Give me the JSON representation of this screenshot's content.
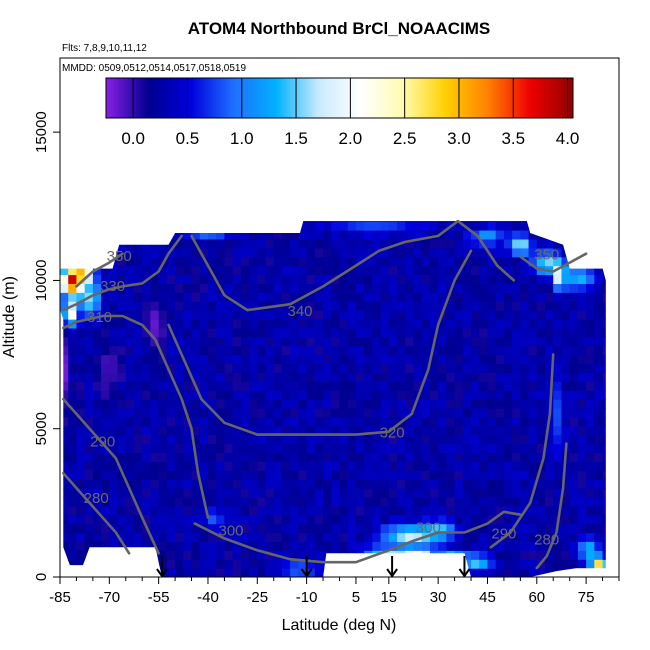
{
  "header": {
    "title": "ATOM4 Northbound BrCl_NOAACIMS",
    "flights_label": "Flts: 7,8,9,10,11,12",
    "dates_label": "MMDD: 0509,0512,0514,0517,0518,0519"
  },
  "chart_data": {
    "type": "heatmap",
    "title": "ATOM4 Northbound BrCl_NOAACIMS",
    "xlabel": "Latitude (deg N)",
    "ylabel": "Altitude (m)",
    "xlim": [
      -85,
      85
    ],
    "ylim": [
      0,
      17500
    ],
    "x_ticks": [
      -85,
      -70,
      -55,
      -40,
      -25,
      -10,
      5,
      15,
      30,
      45,
      60,
      75
    ],
    "x_minor_step": 5,
    "y_ticks": [
      0,
      5000,
      10000,
      15000
    ],
    "colorbar": {
      "range": [
        -0.25,
        4.05
      ],
      "ticks": [
        0.0,
        0.5,
        1.0,
        1.5,
        2.0,
        2.5,
        3.0,
        3.5,
        4.0
      ],
      "tick_labels": [
        "0.0",
        "0.5",
        "1.0",
        "1.5",
        "2.0",
        "2.5",
        "3.0",
        "3.5",
        "4.0"
      ],
      "colors": [
        "#8a1fe6",
        "#00008f",
        "#0000dd",
        "#1f6fff",
        "#00b0ff",
        "#c8eaff",
        "#ffffff",
        "#fffbb0",
        "#ffd000",
        "#ff8000",
        "#ee0000",
        "#900000"
      ],
      "placement": "top"
    },
    "grid": false,
    "background_value": 0.25,
    "data_envelope": [
      [
        -84,
        1000
      ],
      [
        -82,
        400
      ],
      [
        -78,
        400
      ],
      [
        -76,
        1000
      ],
      [
        -56,
        1000
      ],
      [
        -54,
        0
      ],
      [
        -52,
        0
      ],
      [
        -5,
        0
      ],
      [
        -4,
        800
      ],
      [
        38,
        800
      ],
      [
        40,
        0
      ],
      [
        48,
        0
      ],
      [
        58,
        0
      ],
      [
        66,
        200
      ],
      [
        72,
        300
      ],
      [
        81,
        300
      ],
      [
        81,
        10000
      ],
      [
        80,
        10400
      ],
      [
        70,
        10400
      ],
      [
        68,
        11200
      ],
      [
        58,
        11600
      ],
      [
        57,
        12000
      ],
      [
        44,
        12000
      ],
      [
        40,
        12000
      ],
      [
        30,
        12000
      ],
      [
        20,
        12000
      ],
      [
        10,
        12000
      ],
      [
        0,
        12000
      ],
      [
        -11,
        12000
      ],
      [
        -12,
        11600
      ],
      [
        -50,
        11600
      ],
      [
        -52,
        11200
      ],
      [
        -67,
        11200
      ],
      [
        -69,
        10400
      ],
      [
        -80,
        10400
      ],
      [
        -85,
        10400
      ],
      [
        -85,
        9000
      ],
      [
        -84,
        8700
      ],
      [
        -84,
        5000
      ]
    ],
    "hotspots": [
      {
        "x": -81,
        "y": 10000,
        "value": 4.0,
        "rx": 3.5,
        "ry": 500
      },
      {
        "x": -78,
        "y": 10300,
        "value": 3.2,
        "rx": 2.5,
        "ry": 400
      },
      {
        "x": -75,
        "y": 11000,
        "value": 3.0,
        "rx": 1.5,
        "ry": 350
      },
      {
        "x": -82,
        "y": 8900,
        "value": 2.6,
        "rx": 2.0,
        "ry": 400
      },
      {
        "x": -76,
        "y": 9400,
        "value": 1.6,
        "rx": 3.5,
        "ry": 600
      },
      {
        "x": -84,
        "y": 7000,
        "value": -0.2,
        "rx": 2.0,
        "ry": 1300
      },
      {
        "x": -70,
        "y": 7000,
        "value": -0.1,
        "rx": 3.0,
        "ry": 900
      },
      {
        "x": -56,
        "y": 8500,
        "value": -0.15,
        "rx": 3.0,
        "ry": 900
      },
      {
        "x": -65,
        "y": 11700,
        "value": 1.3,
        "rx": 6.0,
        "ry": 300
      },
      {
        "x": -40,
        "y": 11700,
        "value": 1.1,
        "rx": 8.0,
        "ry": 250
      },
      {
        "x": 10,
        "y": 11800,
        "value": 0.8,
        "rx": 15.0,
        "ry": 250
      },
      {
        "x": 45,
        "y": 11500,
        "value": 1.2,
        "rx": 5.0,
        "ry": 300
      },
      {
        "x": 55,
        "y": 11200,
        "value": 1.8,
        "rx": 3.0,
        "ry": 300
      },
      {
        "x": 63,
        "y": 10600,
        "value": 1.6,
        "rx": 4.0,
        "ry": 400
      },
      {
        "x": 67,
        "y": 10200,
        "value": 2.2,
        "rx": 2.0,
        "ry": 500
      },
      {
        "x": 73,
        "y": 10100,
        "value": 1.4,
        "rx": 4.0,
        "ry": 400
      },
      {
        "x": 22,
        "y": 1400,
        "value": 1.8,
        "rx": 9.0,
        "ry": 350
      },
      {
        "x": 30,
        "y": 1600,
        "value": 1.5,
        "rx": 5.0,
        "ry": 300
      },
      {
        "x": 15,
        "y": 600,
        "value": 1.9,
        "rx": 8.0,
        "ry": 350
      },
      {
        "x": 24,
        "y": 600,
        "value": 2.8,
        "rx": 4.0,
        "ry": 300
      },
      {
        "x": 34,
        "y": 600,
        "value": 1.7,
        "rx": 4.0,
        "ry": 300
      },
      {
        "x": 42,
        "y": 500,
        "value": 1.5,
        "rx": 4.0,
        "ry": 300
      },
      {
        "x": 79,
        "y": 400,
        "value": 3.0,
        "rx": 2.5,
        "ry": 300
      },
      {
        "x": 76,
        "y": 900,
        "value": 1.4,
        "rx": 3.0,
        "ry": 400
      },
      {
        "x": -38,
        "y": 2000,
        "value": 0.9,
        "rx": 3.0,
        "ry": 300
      },
      {
        "x": 66,
        "y": 5500,
        "value": 0.8,
        "rx": 2.0,
        "ry": 1500
      },
      {
        "x": -12,
        "y": 300,
        "value": 1.0,
        "rx": 5.0,
        "ry": 300
      }
    ],
    "contours": [
      {
        "level": 350,
        "label": "350",
        "points": [
          [
            -80,
            9800
          ],
          [
            -75,
            10300
          ],
          [
            -70,
            10600
          ],
          [
            -66,
            10900
          ]
        ]
      },
      {
        "level": 330,
        "label": "330",
        "points": [
          [
            -84,
            9000
          ],
          [
            -80,
            9200
          ],
          [
            -75,
            9500
          ],
          [
            -70,
            9700
          ],
          [
            -66,
            9800
          ],
          [
            -60,
            9900
          ],
          [
            -55,
            10300
          ],
          [
            -52,
            10900
          ],
          [
            -48,
            11500
          ]
        ]
      },
      {
        "level": 310,
        "label": "310",
        "points": [
          [
            -84,
            8400
          ],
          [
            -80,
            8600
          ],
          [
            -76,
            8700
          ],
          [
            -72,
            8800
          ],
          [
            -66,
            8800
          ],
          [
            -60,
            8500
          ],
          [
            -56,
            8000
          ],
          [
            -52,
            7000
          ],
          [
            -48,
            6000
          ],
          [
            -45,
            5000
          ],
          [
            -43,
            3500
          ],
          [
            -40,
            2000
          ]
        ]
      },
      {
        "level": 290,
        "label": "290",
        "points": [
          [
            -84,
            6000
          ],
          [
            -80,
            5500
          ],
          [
            -76,
            5000
          ],
          [
            -72,
            4500
          ],
          [
            -68,
            4000
          ],
          [
            -64,
            3000
          ],
          [
            -60,
            2000
          ],
          [
            -55,
            800
          ]
        ]
      },
      {
        "level": 280,
        "label": "280",
        "points": [
          [
            -84,
            3500
          ],
          [
            -80,
            3000
          ],
          [
            -76,
            2500
          ],
          [
            -72,
            2000
          ],
          [
            -68,
            1500
          ],
          [
            -64,
            800
          ]
        ]
      },
      {
        "level": 300,
        "label": "300",
        "points": [
          [
            -44,
            1800
          ],
          [
            -35,
            1300
          ],
          [
            -25,
            900
          ],
          [
            -15,
            600
          ],
          [
            -5,
            500
          ],
          [
            5,
            500
          ],
          [
            15,
            900
          ],
          [
            22,
            1200
          ],
          [
            30,
            1500
          ],
          [
            38,
            1500
          ],
          [
            45,
            1800
          ],
          [
            50,
            2200
          ],
          [
            55,
            2100
          ]
        ]
      },
      {
        "level": 320,
        "label": "320",
        "points": [
          [
            -52,
            8500
          ],
          [
            -48,
            7500
          ],
          [
            -42,
            6000
          ],
          [
            -35,
            5200
          ],
          [
            -25,
            4800
          ],
          [
            -15,
            4800
          ],
          [
            -5,
            4800
          ],
          [
            5,
            4800
          ],
          [
            15,
            4900
          ],
          [
            22,
            5500
          ],
          [
            27,
            7000
          ],
          [
            30,
            8500
          ],
          [
            35,
            10000
          ],
          [
            40,
            11000
          ]
        ]
      },
      {
        "level": 340,
        "label": "340",
        "points": [
          [
            -45,
            11500
          ],
          [
            -40,
            10500
          ],
          [
            -35,
            9500
          ],
          [
            -28,
            9000
          ],
          [
            -15,
            9200
          ],
          [
            -5,
            9800
          ],
          [
            5,
            10500
          ],
          [
            12,
            11000
          ],
          [
            20,
            11300
          ],
          [
            30,
            11500
          ],
          [
            36,
            12000
          ],
          [
            42,
            11500
          ],
          [
            48,
            10500
          ],
          [
            53,
            10000
          ]
        ]
      },
      {
        "level": 290,
        "label": "290",
        "points": [
          [
            46,
            1000
          ],
          [
            52,
            1500
          ],
          [
            58,
            2500
          ],
          [
            62,
            4000
          ],
          [
            64,
            5500
          ],
          [
            65,
            7500
          ]
        ]
      },
      {
        "level": 280,
        "label": "280",
        "points": [
          [
            60,
            300
          ],
          [
            63,
            700
          ],
          [
            66,
            1500
          ],
          [
            68,
            3000
          ],
          [
            69,
            4500
          ]
        ]
      },
      {
        "level": 350,
        "label": "350",
        "points": [
          [
            55,
            10800
          ],
          [
            60,
            10400
          ],
          [
            65,
            10300
          ],
          [
            70,
            10600
          ],
          [
            75,
            10900
          ]
        ]
      }
    ],
    "contour_labels": [
      {
        "text": "350",
        "x": -67,
        "y": 10650
      },
      {
        "text": "330",
        "x": -69,
        "y": 9650
      },
      {
        "text": "310",
        "x": -73,
        "y": 8600
      },
      {
        "text": "290",
        "x": -72,
        "y": 4400
      },
      {
        "text": "280",
        "x": -74,
        "y": 2500
      },
      {
        "text": "300",
        "x": -33,
        "y": 1400
      },
      {
        "text": "320",
        "x": 16,
        "y": 4700
      },
      {
        "text": "340",
        "x": -12,
        "y": 8800
      },
      {
        "text": "300",
        "x": 27,
        "y": 1500
      },
      {
        "text": "290",
        "x": 50,
        "y": 1300
      },
      {
        "text": "280",
        "x": 63,
        "y": 1100
      },
      {
        "text": "350",
        "x": 63,
        "y": 10700
      }
    ],
    "arrows": [
      -54,
      -10,
      16,
      38
    ]
  }
}
